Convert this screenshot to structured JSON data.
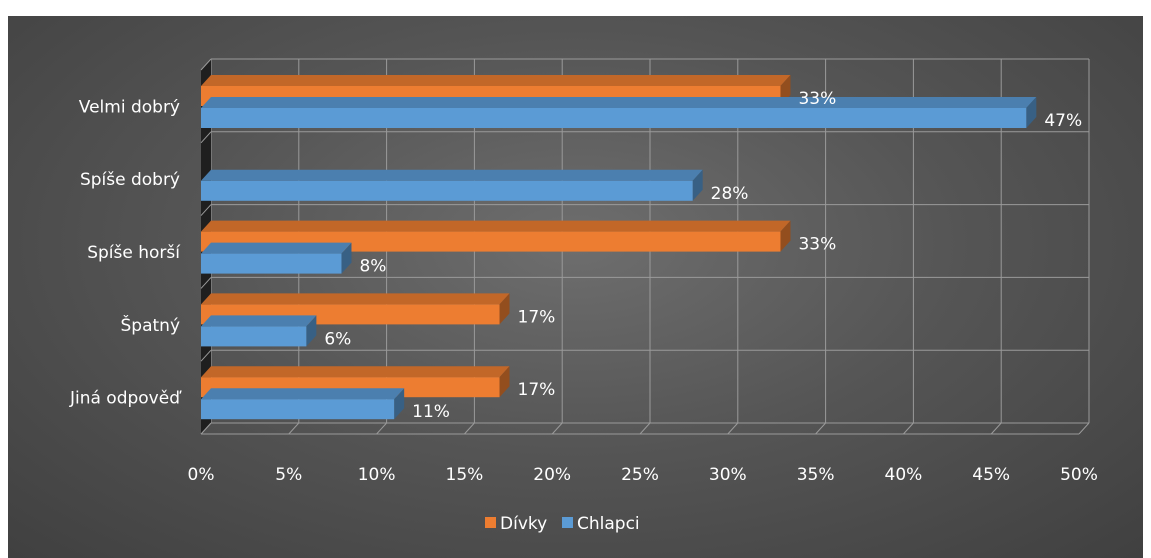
{
  "chart_data": {
    "type": "bar",
    "orientation": "horizontal",
    "style": "3d-clustered-bar",
    "categories": [
      "Velmi dobrý",
      "Spíše dobrý",
      "Spíše horší",
      "Špatný",
      "Jiná odpověď"
    ],
    "series": [
      {
        "name": "Dívky",
        "color": "#ED7D31",
        "values": [
          33,
          0,
          33,
          17,
          17
        ]
      },
      {
        "name": "Chlapci",
        "color": "#5B9BD5",
        "values": [
          47,
          28,
          8,
          6,
          11
        ]
      }
    ],
    "data_labels": {
      "Dívky": [
        "33%",
        null,
        "33%",
        "17%",
        "17%"
      ],
      "Chlapci": [
        "47%",
        "28%",
        "8%",
        "6%",
        "11%"
      ]
    },
    "xlim": [
      0,
      50
    ],
    "x_ticks": [
      "0%",
      "5%",
      "10%",
      "15%",
      "20%",
      "25%",
      "30%",
      "35%",
      "40%",
      "45%",
      "50%"
    ],
    "grid": true,
    "legend_position": "bottom",
    "background_color": "#555555",
    "title": "",
    "xlabel": "",
    "ylabel": ""
  }
}
